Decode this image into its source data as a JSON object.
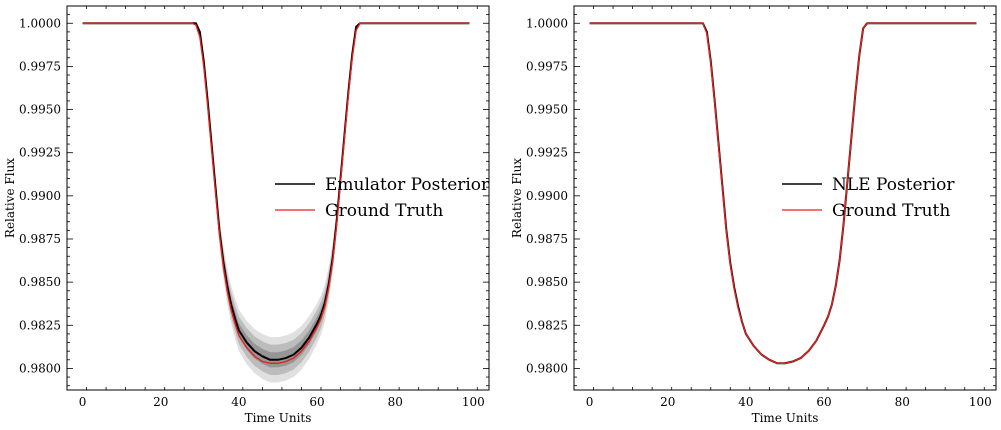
{
  "figure": {
    "background": "#ffffff"
  },
  "chart_data": [
    {
      "type": "line",
      "title": "",
      "xlabel": "Time Units",
      "ylabel": "Relative Flux",
      "xlim": [
        -4,
        104
      ],
      "ylim": [
        0.97875,
        1.001
      ],
      "xticks": [
        0,
        20,
        40,
        60,
        80,
        100
      ],
      "yticks": [
        0.98,
        0.9825,
        0.985,
        0.9875,
        0.99,
        0.9925,
        0.995,
        0.9975,
        1.0
      ],
      "ytick_labels": [
        "0.9800",
        "0.9825",
        "0.9850",
        "0.9875",
        "0.9900",
        "0.9925",
        "0.9950",
        "0.9975",
        "1.0000"
      ],
      "grid": false,
      "legend_position": "center-right",
      "x": [
        0,
        10,
        20,
        28,
        29,
        30,
        31,
        32,
        33,
        34,
        35,
        36,
        37,
        38,
        39,
        40,
        42,
        44,
        46,
        48,
        49,
        50,
        52,
        54,
        56,
        58,
        60,
        61,
        62,
        63,
        64,
        65,
        66,
        67,
        68,
        69,
        70,
        71,
        80,
        90,
        99
      ],
      "series": [
        {
          "name": "Emulator Posterior",
          "color": "#000000",
          "values": [
            1.0,
            1.0,
            1.0,
            1.0,
            1.0,
            0.9995,
            0.9978,
            0.9955,
            0.993,
            0.9905,
            0.988,
            0.9862,
            0.9848,
            0.9837,
            0.9829,
            0.9822,
            0.9815,
            0.981,
            0.9807,
            0.9805,
            0.9805,
            0.9805,
            0.9806,
            0.9808,
            0.9812,
            0.9818,
            0.9826,
            0.9831,
            0.9838,
            0.9849,
            0.9864,
            0.9885,
            0.991,
            0.9935,
            0.996,
            0.9982,
            0.9998,
            1.0,
            1.0,
            1.0,
            1.0
          ]
        },
        {
          "name": "Ground Truth",
          "color": "#e8201c",
          "values": [
            1.0,
            1.0,
            1.0,
            1.0,
            0.9999,
            0.9992,
            0.9975,
            0.9952,
            0.9927,
            0.9902,
            0.9878,
            0.9859,
            0.9845,
            0.9834,
            0.9826,
            0.9819,
            0.9812,
            0.9807,
            0.9804,
            0.9803,
            0.9803,
            0.9803,
            0.9804,
            0.9806,
            0.981,
            0.9816,
            0.9824,
            0.9829,
            0.9836,
            0.9847,
            0.9862,
            0.9883,
            0.9908,
            0.9933,
            0.9958,
            0.998,
            0.9996,
            1.0,
            1.0,
            1.0,
            1.0
          ]
        }
      ]
    },
    {
      "type": "line",
      "title": "",
      "xlabel": "Time Units",
      "ylabel": "Relative Flux",
      "xlim": [
        -4,
        104
      ],
      "ylim": [
        0.97875,
        1.001
      ],
      "xticks": [
        0,
        20,
        40,
        60,
        80,
        100
      ],
      "yticks": [
        0.98,
        0.9825,
        0.985,
        0.9875,
        0.99,
        0.9925,
        0.995,
        0.9975,
        1.0
      ],
      "ytick_labels": [
        "0.9800",
        "0.9825",
        "0.9850",
        "0.9875",
        "0.9900",
        "0.9925",
        "0.9950",
        "0.9975",
        "1.0000"
      ],
      "grid": false,
      "legend_position": "center-right",
      "x": [
        0,
        10,
        20,
        28,
        29,
        30,
        31,
        32,
        33,
        34,
        35,
        36,
        37,
        38,
        39,
        40,
        42,
        44,
        46,
        48,
        49,
        50,
        52,
        54,
        56,
        58,
        60,
        61,
        62,
        63,
        64,
        65,
        66,
        67,
        68,
        69,
        70,
        71,
        80,
        90,
        99
      ],
      "series": [
        {
          "name": "NLE Posterior",
          "color": "#000000",
          "values": [
            1.0,
            1.0,
            1.0,
            1.0,
            1.0,
            0.9995,
            0.9978,
            0.9955,
            0.993,
            0.9905,
            0.988,
            0.9861,
            0.9847,
            0.9836,
            0.9827,
            0.982,
            0.9813,
            0.9808,
            0.9805,
            0.9803,
            0.9803,
            0.9803,
            0.9804,
            0.9806,
            0.981,
            0.9816,
            0.9825,
            0.983,
            0.9837,
            0.9848,
            0.9863,
            0.9884,
            0.9909,
            0.9934,
            0.9959,
            0.9981,
            0.9997,
            1.0,
            1.0,
            1.0,
            1.0
          ]
        },
        {
          "name": "Ground Truth",
          "color": "#e8201c",
          "values": [
            1.0,
            1.0,
            1.0,
            1.0,
            1.0,
            0.9994,
            0.9977,
            0.9954,
            0.9929,
            0.9904,
            0.9879,
            0.986,
            0.9846,
            0.9835,
            0.9827,
            0.982,
            0.9813,
            0.9808,
            0.9805,
            0.9803,
            0.9803,
            0.9803,
            0.9804,
            0.9806,
            0.981,
            0.9816,
            0.9825,
            0.983,
            0.9837,
            0.9848,
            0.9863,
            0.9884,
            0.9909,
            0.9934,
            0.9959,
            0.9981,
            0.9997,
            1.0,
            1.0,
            1.0,
            1.0
          ]
        }
      ]
    }
  ]
}
